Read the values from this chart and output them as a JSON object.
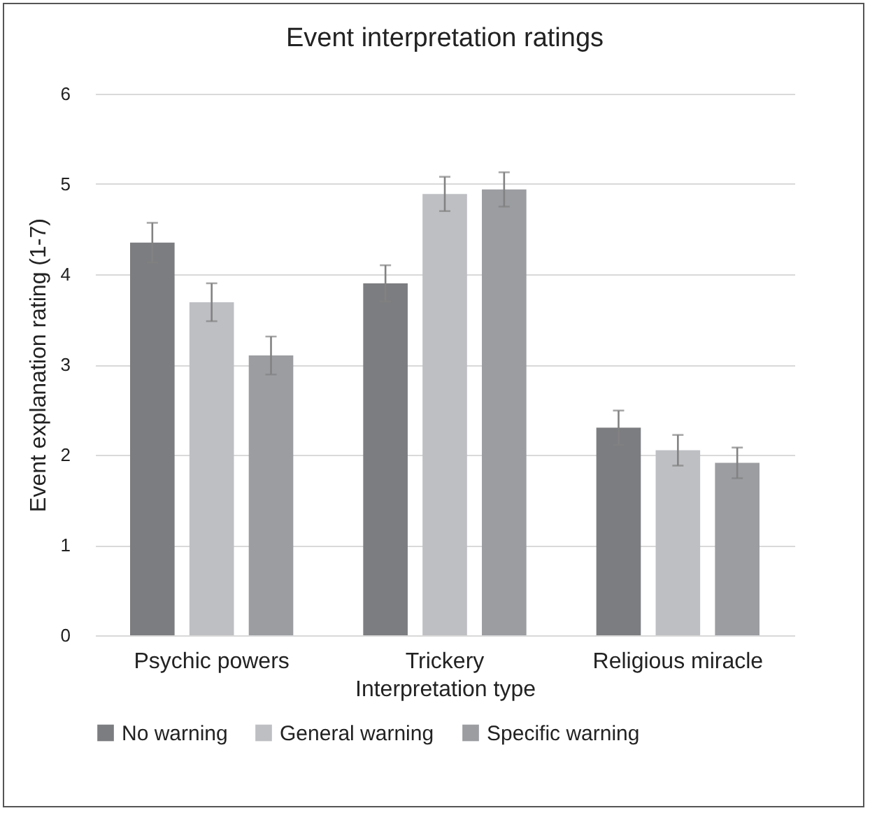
{
  "chart_data": {
    "type": "bar",
    "title": "Event interpretation ratings",
    "xlabel": "Interpretation type",
    "ylabel": "Event explanation rating (1-7)",
    "categories": [
      "Psychic powers",
      "Trickery",
      "Religious miracle"
    ],
    "series": [
      {
        "name": "No warning",
        "color": "#7c7d80",
        "values": [
          4.35,
          3.9,
          2.3
        ],
        "errors": [
          0.22,
          0.2,
          0.19
        ]
      },
      {
        "name": "General warning",
        "color": "#bebfc3",
        "values": [
          3.69,
          4.89,
          2.05
        ],
        "errors": [
          0.21,
          0.19,
          0.17
        ]
      },
      {
        "name": "Specific warning",
        "color": "#9c9da1",
        "values": [
          3.1,
          4.94,
          1.91
        ],
        "errors": [
          0.21,
          0.19,
          0.17
        ]
      }
    ],
    "ylim": [
      0,
      6
    ],
    "yticks": [
      0,
      1,
      2,
      3,
      4,
      5,
      6
    ],
    "grid": "y",
    "legend": "bottom"
  }
}
